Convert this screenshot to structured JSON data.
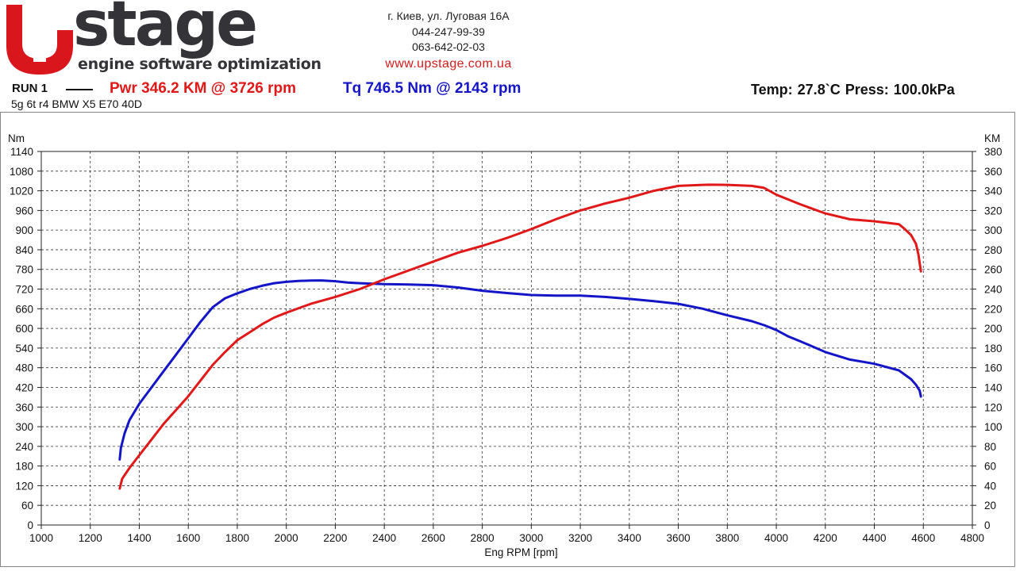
{
  "header": {
    "logo_text": "stage",
    "logo_tagline": "engine software optimization",
    "address": "г. Киев, ул. Луговая 16А",
    "phone1": "044-247-99-39",
    "phone2": "063-642-02-03",
    "website": "www.upstage.com.ua"
  },
  "summary": {
    "run_label": "RUN 1",
    "power": "Pwr  346.2 KM @ 3726 rpm",
    "torque": "Tq 746.5 Nm @ 2143 rpm",
    "conditions": "Temp: 27.8`C    Press: 100.0kPa",
    "vehicle": "5g 6t r4 BMW X5 E70 40D"
  },
  "colors": {
    "power": "#e01818",
    "torque": "#1515c8",
    "logo_red": "#d8161c",
    "logo_dark": "#333338"
  },
  "chart_data": {
    "type": "line",
    "xlabel": "Eng RPM [rpm]",
    "ylabel_left": "Nm",
    "ylabel_right": "KM",
    "xlim": [
      1000,
      4800
    ],
    "xticks": [
      1000,
      1200,
      1400,
      1600,
      1800,
      2000,
      2200,
      2400,
      2600,
      2800,
      3000,
      3200,
      3400,
      3600,
      3800,
      4000,
      4200,
      4400,
      4600,
      4800
    ],
    "ylim_left": [
      0,
      1140
    ],
    "ylim_right": [
      0,
      380
    ],
    "yticks_left": [
      0,
      60,
      120,
      180,
      240,
      300,
      360,
      420,
      480,
      540,
      600,
      660,
      720,
      780,
      840,
      900,
      960,
      1020,
      1080,
      1140
    ],
    "yticks_right": [
      0,
      20,
      40,
      60,
      80,
      100,
      120,
      140,
      160,
      180,
      200,
      220,
      240,
      260,
      280,
      300,
      320,
      340,
      360,
      380
    ],
    "grid": true,
    "series": [
      {
        "name": "Tq",
        "axis": "left",
        "color": "#1515c8",
        "x": [
          1320,
          1325,
          1340,
          1360,
          1400,
          1450,
          1500,
          1550,
          1600,
          1650,
          1700,
          1750,
          1800,
          1850,
          1900,
          1950,
          2000,
          2050,
          2100,
          2143,
          2200,
          2250,
          2300,
          2400,
          2500,
          2600,
          2700,
          2800,
          2900,
          3000,
          3100,
          3200,
          3300,
          3400,
          3500,
          3600,
          3700,
          3800,
          3900,
          3950,
          4000,
          4050,
          4100,
          4200,
          4300,
          4400,
          4500,
          4550,
          4570,
          4585,
          4590
        ],
        "y": [
          200,
          235,
          280,
          320,
          370,
          420,
          470,
          520,
          570,
          620,
          665,
          692,
          707,
          720,
          730,
          738,
          742,
          745,
          746,
          746.5,
          744,
          740,
          738,
          735,
          734,
          732,
          725,
          715,
          708,
          702,
          700,
          700,
          696,
          690,
          683,
          675,
          660,
          640,
          622,
          610,
          595,
          575,
          560,
          528,
          505,
          492,
          472,
          445,
          428,
          410,
          392
        ]
      },
      {
        "name": "Pwr",
        "axis": "right",
        "color": "#e01818",
        "x": [
          1320,
          1330,
          1360,
          1400,
          1450,
          1500,
          1550,
          1600,
          1650,
          1700,
          1750,
          1800,
          1850,
          1900,
          1950,
          2000,
          2100,
          2200,
          2300,
          2400,
          2500,
          2600,
          2700,
          2800,
          2900,
          3000,
          3100,
          3200,
          3300,
          3400,
          3500,
          3600,
          3700,
          3726,
          3800,
          3900,
          3950,
          4000,
          4100,
          4200,
          4300,
          4400,
          4500,
          4520,
          4550,
          4570,
          4580,
          4590
        ],
        "y": [
          37,
          47,
          58,
          71,
          87,
          103,
          117,
          131,
          147,
          163,
          176,
          188,
          196,
          204,
          211,
          216,
          225,
          232,
          240,
          250,
          259,
          268,
          277,
          284,
          292,
          301,
          311,
          320,
          327,
          333,
          340,
          345,
          346,
          346.2,
          346,
          345,
          343,
          336,
          326,
          317,
          311,
          309,
          306,
          302,
          295,
          286,
          275,
          258
        ]
      }
    ]
  }
}
